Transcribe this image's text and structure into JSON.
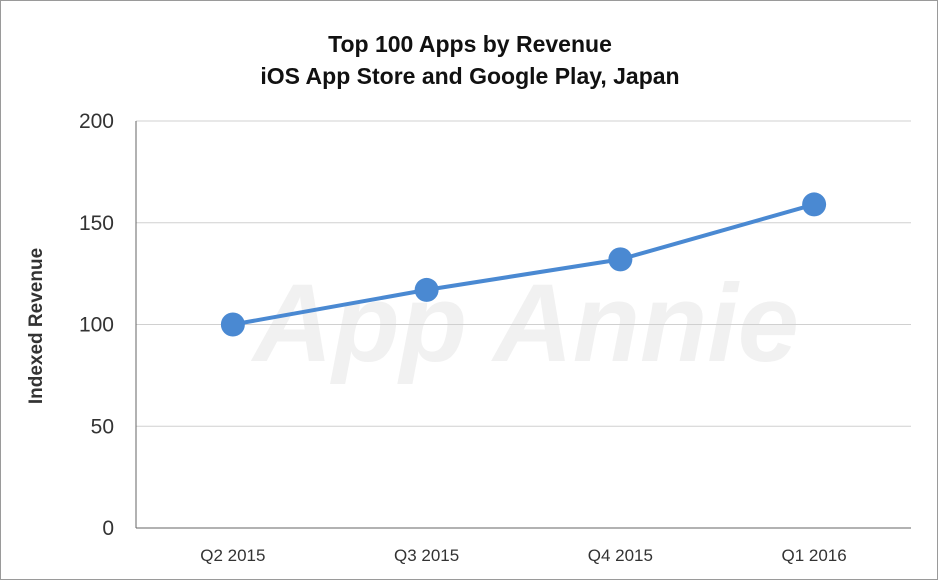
{
  "chart_data": {
    "type": "line",
    "title": "Top 100 Apps by Revenue",
    "subtitle": "iOS App Store and Google Play, Japan",
    "xlabel": "",
    "ylabel": "Indexed Revenue",
    "categories": [
      "Q2 2015",
      "Q3 2015",
      "Q4 2015",
      "Q1 2016"
    ],
    "values": [
      100,
      117,
      132,
      159
    ],
    "ylim": [
      0,
      200
    ],
    "yticks": [
      0,
      50,
      100,
      150,
      200
    ],
    "grid": true,
    "watermark": "App Annie",
    "colors": {
      "series": "#4a89d2",
      "grid": "#d0d0d0",
      "axis": "#666666"
    }
  }
}
